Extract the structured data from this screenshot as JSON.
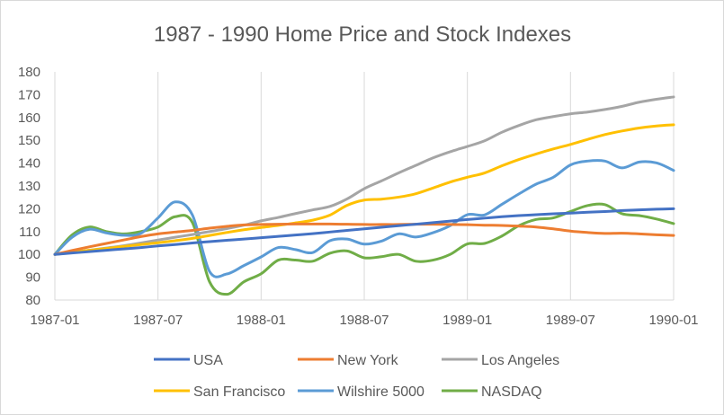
{
  "chart_data": {
    "type": "line",
    "title": "1987 - 1990 Home Price and Stock Indexes",
    "xlabel": "",
    "ylabel": "",
    "ylim": [
      80,
      180
    ],
    "yticks": [
      80,
      90,
      100,
      110,
      120,
      130,
      140,
      150,
      160,
      170,
      180
    ],
    "xticks": [
      "1987-01",
      "1987-07",
      "1988-01",
      "1988-07",
      "1989-01",
      "1989-07",
      "1990-01"
    ],
    "grid": "vertical",
    "legend_position": "bottom",
    "x": [
      "1987-01",
      "1987-02",
      "1987-03",
      "1987-04",
      "1987-05",
      "1987-06",
      "1987-07",
      "1987-08",
      "1987-09",
      "1987-10",
      "1987-11",
      "1987-12",
      "1988-01",
      "1988-02",
      "1988-03",
      "1988-04",
      "1988-05",
      "1988-06",
      "1988-07",
      "1988-08",
      "1988-09",
      "1988-10",
      "1988-11",
      "1988-12",
      "1989-01",
      "1989-02",
      "1989-03",
      "1989-04",
      "1989-05",
      "1989-06",
      "1989-07",
      "1989-08",
      "1989-09",
      "1989-10",
      "1989-11",
      "1989-12",
      "1990-01"
    ],
    "series": [
      {
        "name": "USA",
        "color": "#4472c4",
        "values": [
          100,
          100.6,
          101.2,
          101.8,
          102.4,
          103.0,
          103.7,
          104.3,
          105.0,
          105.6,
          106.2,
          106.7,
          107.3,
          107.9,
          108.5,
          109.1,
          109.8,
          110.5,
          111.2,
          111.9,
          112.6,
          113.2,
          113.9,
          114.6,
          115.3,
          115.9,
          116.5,
          117.0,
          117.4,
          117.8,
          118.1,
          118.5,
          118.8,
          119.2,
          119.5,
          119.8,
          120.0
        ]
      },
      {
        "name": "New York",
        "color": "#ed7d31",
        "values": [
          100,
          101.7,
          103.3,
          104.8,
          106.3,
          107.8,
          109.0,
          109.8,
          110.5,
          111.5,
          112.3,
          112.9,
          113.1,
          113.2,
          113.3,
          113.3,
          113.3,
          113.2,
          113.1,
          113.1,
          113.1,
          113.2,
          113.2,
          113.1,
          113.0,
          112.8,
          112.7,
          112.4,
          112.0,
          111.2,
          110.2,
          109.6,
          109.2,
          109.3,
          109.0,
          108.6,
          108.3
        ]
      },
      {
        "name": "Los Angeles",
        "color": "#a5a5a5",
        "values": [
          100,
          100.8,
          101.8,
          102.8,
          103.8,
          105.0,
          106.3,
          107.5,
          108.7,
          110.0,
          111.3,
          112.8,
          114.7,
          116.2,
          117.9,
          119.5,
          121.0,
          124.3,
          128.8,
          132.2,
          135.7,
          139.0,
          142.3,
          145.0,
          147.3,
          149.8,
          153.5,
          156.5,
          159.0,
          160.4,
          161.6,
          162.4,
          163.5,
          164.9,
          166.7,
          168.0,
          169.0
        ]
      },
      {
        "name": "San Francisco",
        "color": "#ffc000",
        "values": [
          100,
          100.9,
          101.8,
          102.6,
          103.5,
          104.3,
          105.1,
          106.0,
          107.0,
          108.3,
          109.6,
          110.8,
          111.8,
          112.7,
          113.8,
          115.0,
          117.2,
          121.5,
          123.8,
          124.2,
          125.1,
          126.6,
          129.1,
          131.7,
          133.8,
          135.7,
          138.8,
          141.6,
          144.0,
          146.2,
          148.2,
          150.4,
          152.5,
          154.1,
          155.4,
          156.3,
          156.8
        ]
      },
      {
        "name": "Wilshire 5000",
        "color": "#5b9bd5",
        "values": [
          100,
          107.5,
          111.0,
          109.4,
          108.4,
          109.2,
          116.0,
          123.0,
          117.3,
          92.5,
          91.4,
          95.1,
          98.9,
          103.0,
          102.1,
          100.8,
          106.0,
          106.7,
          104.5,
          105.8,
          109.0,
          107.6,
          109.5,
          112.6,
          117.4,
          117.3,
          121.9,
          126.5,
          130.8,
          133.8,
          139.2,
          140.9,
          140.9,
          137.9,
          140.5,
          140.1,
          136.8
        ]
      },
      {
        "name": "NASDAQ",
        "color": "#70ad47",
        "values": [
          100,
          108.5,
          112.0,
          110.0,
          109.0,
          110.0,
          112.0,
          116.5,
          114.0,
          88.0,
          82.5,
          88.0,
          91.5,
          97.5,
          97.5,
          97.0,
          100.5,
          101.5,
          98.5,
          99.0,
          100.0,
          97.0,
          97.5,
          100.0,
          104.6,
          104.8,
          108.0,
          112.6,
          115.3,
          116.0,
          118.8,
          121.4,
          121.8,
          117.8,
          117.0,
          115.5,
          113.5
        ]
      }
    ]
  }
}
